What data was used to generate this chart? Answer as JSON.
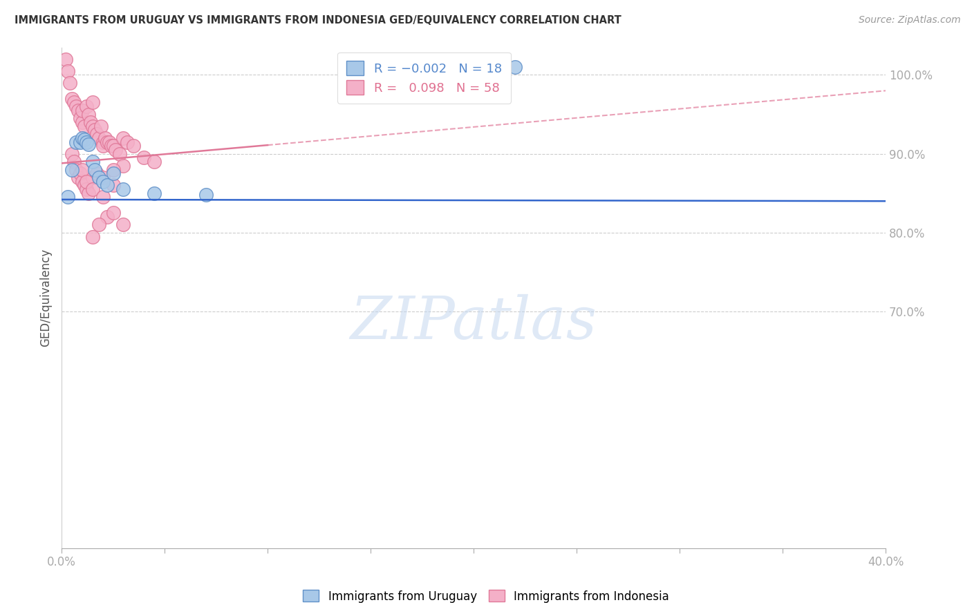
{
  "title": "IMMIGRANTS FROM URUGUAY VS IMMIGRANTS FROM INDONESIA GED/EQUIVALENCY CORRELATION CHART",
  "source": "Source: ZipAtlas.com",
  "ylabel": "GED/Equivalency",
  "watermark": "ZIPatlas",
  "xlim": [
    0.0,
    40.0
  ],
  "ylim": [
    40.0,
    103.5
  ],
  "yticks": [
    70.0,
    80.0,
    90.0,
    100.0
  ],
  "ytick_labels": [
    "70.0%",
    "80.0%",
    "90.0%",
    "100.0%"
  ],
  "xtick_labels": [
    "0.0%",
    "",
    "",
    "",
    "",
    "",
    "",
    "",
    "40.0%"
  ],
  "xtick_positions": [
    0.0,
    5.0,
    10.0,
    15.0,
    20.0,
    25.0,
    30.0,
    35.0,
    40.0
  ],
  "uruguay_color": "#a8c8e8",
  "indonesia_color": "#f4b0c8",
  "uruguay_edge": "#6090c8",
  "indonesia_edge": "#e07898",
  "trend_blue_color": "#3366cc",
  "trend_pink_color": "#e07898",
  "uruguay_trend_y0": 84.2,
  "uruguay_trend_y1": 84.0,
  "indonesia_trend_y0": 88.8,
  "indonesia_trend_y1": 98.0,
  "indonesia_solid_x_end": 10.0,
  "uruguay_points_x": [
    0.3,
    0.5,
    0.7,
    0.9,
    1.0,
    1.1,
    1.2,
    1.3,
    1.5,
    1.6,
    1.8,
    2.0,
    2.2,
    3.0,
    4.5,
    7.0,
    2.5,
    22.0
  ],
  "uruguay_points_y": [
    84.5,
    88.0,
    91.5,
    91.5,
    92.0,
    91.8,
    91.5,
    91.2,
    89.0,
    88.0,
    87.0,
    86.5,
    86.0,
    85.5,
    85.0,
    84.8,
    87.5,
    101.0
  ],
  "indonesia_points_x": [
    0.2,
    0.3,
    0.4,
    0.5,
    0.6,
    0.7,
    0.8,
    0.9,
    1.0,
    1.0,
    1.1,
    1.2,
    1.3,
    1.4,
    1.5,
    1.5,
    1.6,
    1.7,
    1.8,
    1.9,
    2.0,
    2.0,
    2.1,
    2.2,
    2.3,
    2.4,
    2.5,
    2.6,
    2.8,
    3.0,
    3.2,
    3.5,
    4.0,
    4.5,
    0.5,
    0.6,
    0.7,
    0.8,
    0.9,
    1.0,
    1.1,
    1.2,
    1.3,
    1.5,
    1.7,
    2.0,
    2.5,
    3.0,
    1.0,
    1.2,
    1.5,
    2.0,
    2.2,
    2.5,
    3.0,
    1.5,
    1.8,
    2.5
  ],
  "indonesia_points_y": [
    102.0,
    100.5,
    99.0,
    97.0,
    96.5,
    96.0,
    95.5,
    94.5,
    94.0,
    95.5,
    93.5,
    96.0,
    95.0,
    94.0,
    93.5,
    96.5,
    93.0,
    92.5,
    92.0,
    93.5,
    91.5,
    91.0,
    92.0,
    91.5,
    91.5,
    91.0,
    91.0,
    90.5,
    90.0,
    92.0,
    91.5,
    91.0,
    89.5,
    89.0,
    90.0,
    89.0,
    88.0,
    87.0,
    87.5,
    86.5,
    86.0,
    85.5,
    85.0,
    87.0,
    87.5,
    87.0,
    86.0,
    88.5,
    88.0,
    86.5,
    85.5,
    84.5,
    82.0,
    82.5,
    81.0,
    79.5,
    81.0,
    88.0
  ]
}
